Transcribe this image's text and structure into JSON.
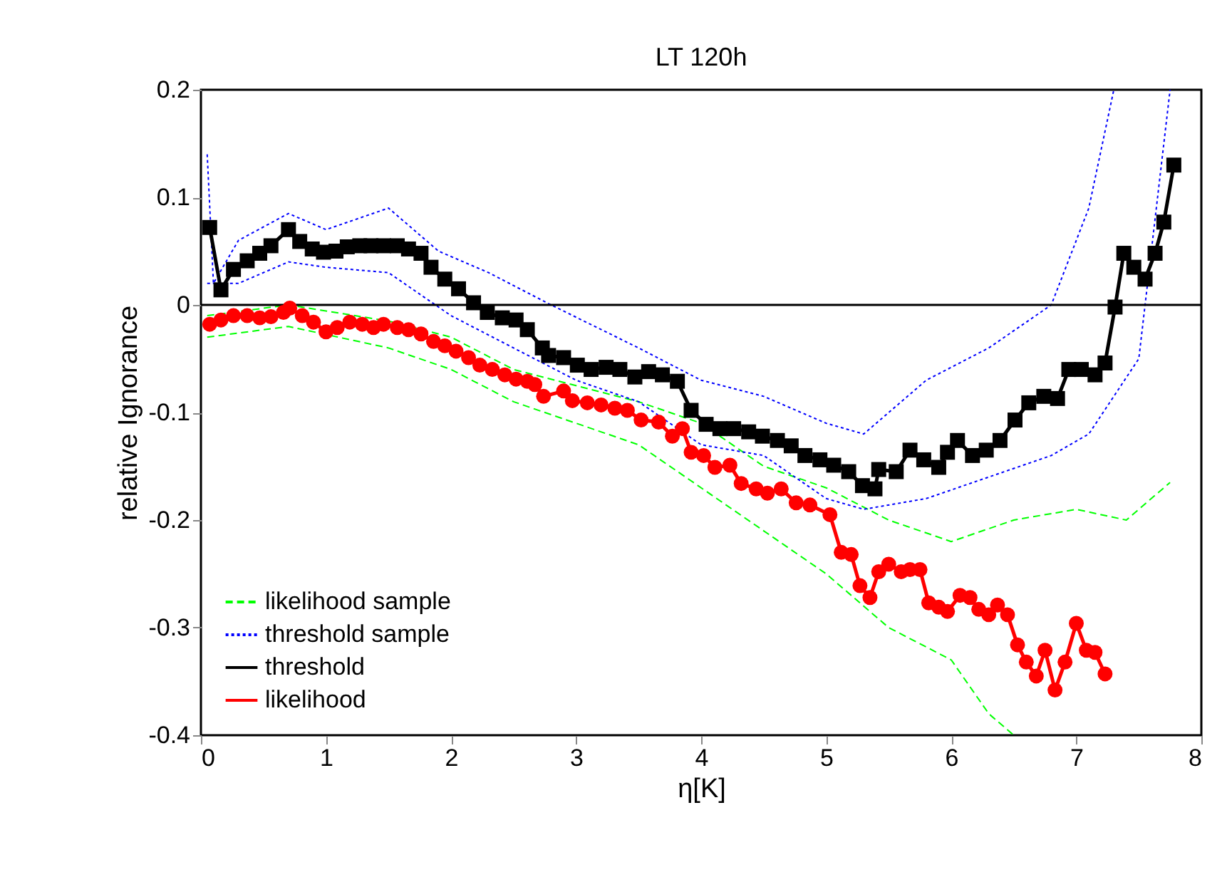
{
  "chart_data": {
    "type": "line",
    "title": "LT 120h",
    "xlabel": "η[K]",
    "ylabel": "relative Ignorance",
    "xlim": [
      0,
      8
    ],
    "ylim": [
      -0.4,
      0.2
    ],
    "xticks": [
      0,
      1,
      2,
      3,
      4,
      5,
      6,
      7,
      8
    ],
    "yticks": [
      -0.4,
      -0.3,
      -0.2,
      -0.1,
      0,
      0.1,
      0.2
    ],
    "legend": "bottom left",
    "ref_lines": [
      {
        "axis": "y",
        "value": 0,
        "color": "#000000"
      }
    ],
    "series": [
      {
        "name": "likelihood sample",
        "color": "#00ff00",
        "line_style": "dashed",
        "marker": "none",
        "x": [
          0.05,
          0.7,
          1.5,
          2.0,
          2.5,
          3.0,
          3.5,
          4.0,
          4.5,
          5.0,
          5.5,
          6.0,
          6.5,
          7.0,
          7.4,
          7.75
        ],
        "values": [
          -0.01,
          0.0,
          -0.015,
          -0.03,
          -0.06,
          -0.075,
          -0.09,
          -0.11,
          -0.15,
          -0.17,
          -0.2,
          -0.22,
          -0.2,
          -0.19,
          -0.2,
          -0.165
        ]
      },
      {
        "color": "#00ff00",
        "line_style": "dashed",
        "marker": "none",
        "x": [
          0.05,
          0.7,
          1.5,
          2.0,
          2.5,
          3.0,
          3.5,
          4.0,
          4.5,
          5.0,
          5.5,
          6.0,
          6.3,
          6.5
        ],
        "values": [
          -0.03,
          -0.02,
          -0.04,
          -0.06,
          -0.09,
          -0.11,
          -0.13,
          -0.17,
          -0.21,
          -0.25,
          -0.3,
          -0.33,
          -0.38,
          -0.4
        ]
      },
      {
        "name": "threshold sample",
        "color": "#0000ff",
        "line_style": "dotted",
        "marker": "none",
        "x": [
          0.05,
          0.1,
          0.3,
          0.7,
          1.0,
          1.5,
          1.9,
          2.3,
          2.8,
          3.5,
          4.0,
          4.5,
          5.0,
          5.3,
          5.8,
          6.3,
          6.8,
          7.1,
          7.3
        ],
        "values": [
          0.14,
          0.02,
          0.06,
          0.085,
          0.07,
          0.09,
          0.05,
          0.03,
          0.0,
          -0.04,
          -0.07,
          -0.085,
          -0.11,
          -0.12,
          -0.07,
          -0.04,
          0.0,
          0.09,
          0.2
        ]
      },
      {
        "color": "#0000ff",
        "line_style": "dotted",
        "marker": "none",
        "x": [
          0.05,
          0.3,
          0.7,
          1.0,
          1.5,
          2.0,
          2.5,
          3.0,
          3.5,
          4.0,
          4.5,
          5.0,
          5.3,
          5.8,
          6.3,
          6.8,
          7.1,
          7.5,
          7.75
        ],
        "values": [
          0.02,
          0.02,
          0.04,
          0.035,
          0.03,
          -0.01,
          -0.04,
          -0.07,
          -0.09,
          -0.13,
          -0.14,
          -0.18,
          -0.19,
          -0.18,
          -0.16,
          -0.14,
          -0.12,
          -0.05,
          0.2
        ]
      },
      {
        "name": "threshold",
        "color": "#000000",
        "line_style": "solid",
        "marker": "square",
        "x": [
          0.07,
          0.16,
          0.26,
          0.37,
          0.47,
          0.56,
          0.7,
          0.79,
          0.89,
          0.98,
          1.08,
          1.17,
          1.27,
          1.36,
          1.46,
          1.57,
          1.66,
          1.76,
          1.84,
          1.95,
          2.06,
          2.18,
          2.29,
          2.41,
          2.52,
          2.61,
          2.73,
          2.78,
          2.9,
          3.01,
          3.12,
          3.24,
          3.35,
          3.47,
          3.58,
          3.69,
          3.81,
          3.92,
          4.04,
          4.15,
          4.26,
          4.38,
          4.49,
          4.61,
          4.72,
          4.83,
          4.95,
          5.06,
          5.18,
          5.29,
          5.39,
          5.42,
          5.56,
          5.67,
          5.78,
          5.9,
          5.97,
          6.05,
          6.17,
          6.28,
          6.39,
          6.51,
          6.62,
          6.74,
          6.85,
          6.94,
          7.04,
          7.15,
          7.23,
          7.31,
          7.38,
          7.46,
          7.55,
          7.63,
          7.7,
          7.78
        ],
        "values": [
          0.072,
          0.014,
          0.033,
          0.041,
          0.048,
          0.055,
          0.07,
          0.059,
          0.052,
          0.049,
          0.05,
          0.054,
          0.055,
          0.055,
          0.055,
          0.055,
          0.052,
          0.048,
          0.035,
          0.024,
          0.015,
          0.002,
          -0.007,
          -0.012,
          -0.014,
          -0.023,
          -0.04,
          -0.047,
          -0.049,
          -0.056,
          -0.06,
          -0.058,
          -0.06,
          -0.067,
          -0.062,
          -0.065,
          -0.071,
          -0.098,
          -0.111,
          -0.115,
          -0.115,
          -0.118,
          -0.122,
          -0.126,
          -0.131,
          -0.14,
          -0.144,
          -0.149,
          -0.155,
          -0.168,
          -0.171,
          -0.153,
          -0.155,
          -0.135,
          -0.144,
          -0.151,
          -0.137,
          -0.126,
          -0.14,
          -0.135,
          -0.126,
          -0.107,
          -0.091,
          -0.085,
          -0.087,
          -0.06,
          -0.06,
          -0.065,
          -0.054,
          -0.002,
          0.048,
          0.035,
          0.024,
          0.048,
          0.077,
          0.13
        ]
      },
      {
        "name": "likelihood",
        "color": "#ff0000",
        "line_style": "solid",
        "marker": "circle",
        "x": [
          0.07,
          0.16,
          0.26,
          0.37,
          0.47,
          0.56,
          0.66,
          0.71,
          0.81,
          0.9,
          1.0,
          1.09,
          1.19,
          1.29,
          1.38,
          1.46,
          1.57,
          1.66,
          1.76,
          1.86,
          1.95,
          2.04,
          2.14,
          2.23,
          2.33,
          2.43,
          2.52,
          2.61,
          2.67,
          2.74,
          2.9,
          2.97,
          3.09,
          3.2,
          3.31,
          3.41,
          3.52,
          3.66,
          3.77,
          3.85,
          3.92,
          4.02,
          4.11,
          4.23,
          4.32,
          4.44,
          4.53,
          4.64,
          4.76,
          4.87,
          5.03,
          5.12,
          5.2,
          5.27,
          5.35,
          5.42,
          5.5,
          5.6,
          5.67,
          5.75,
          5.82,
          5.9,
          5.97,
          6.07,
          6.15,
          6.22,
          6.3,
          6.37,
          6.45,
          6.53,
          6.6,
          6.68,
          6.75,
          6.83,
          6.91,
          7.0,
          7.08,
          7.15,
          7.23
        ],
        "values": [
          -0.018,
          -0.014,
          -0.01,
          -0.01,
          -0.012,
          -0.011,
          -0.007,
          -0.003,
          -0.01,
          -0.016,
          -0.025,
          -0.021,
          -0.016,
          -0.018,
          -0.021,
          -0.018,
          -0.021,
          -0.023,
          -0.027,
          -0.034,
          -0.038,
          -0.043,
          -0.049,
          -0.056,
          -0.06,
          -0.065,
          -0.069,
          -0.071,
          -0.074,
          -0.085,
          -0.08,
          -0.089,
          -0.091,
          -0.093,
          -0.096,
          -0.098,
          -0.107,
          -0.109,
          -0.122,
          -0.115,
          -0.137,
          -0.14,
          -0.151,
          -0.149,
          -0.166,
          -0.171,
          -0.175,
          -0.171,
          -0.184,
          -0.186,
          -0.195,
          -0.23,
          -0.232,
          -0.261,
          -0.272,
          -0.248,
          -0.241,
          -0.248,
          -0.246,
          -0.246,
          -0.277,
          -0.281,
          -0.285,
          -0.27,
          -0.272,
          -0.283,
          -0.288,
          -0.279,
          -0.288,
          -0.316,
          -0.332,
          -0.345,
          -0.321,
          -0.358,
          -0.332,
          -0.296,
          -0.321,
          -0.323,
          -0.343
        ]
      }
    ]
  }
}
